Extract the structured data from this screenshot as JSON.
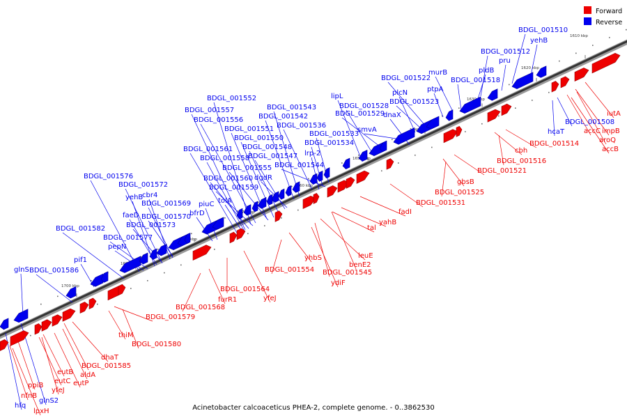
{
  "legend": {
    "forward_label": "Forward",
    "reverse_label": "Reverse",
    "forward_color": "#ee0000",
    "reverse_color": "#0000ee"
  },
  "caption": "Acinetobacter calcoaceticus PHEA-2, complete genome. - 0..3862530",
  "ticks": [
    "1610 kbp",
    "1620 kbp",
    "1630 kbp",
    "1640 kbp",
    "1650 kbp",
    "1660 kbp",
    "1670 kbp",
    "1680 kbp",
    "1690 kbp",
    "1700 kbp"
  ],
  "reverse_labels": [
    "BDGL_001510",
    "yehB",
    "BDGL_001512",
    "pru",
    "pldB",
    "murB",
    "BDGL_001518",
    "ptpA",
    "BDGL_001522",
    "plcN",
    "BDGL_001523",
    "lipL",
    "BDGL_001528",
    "dnaX",
    "BDGL_001529",
    "smvA",
    "BDGL_001552",
    "BDGL_001543",
    "BDGL_001557",
    "BDGL_001542",
    "BDGL_001556",
    "BDGL_001536",
    "BDGL_001551",
    "BDGL_001533",
    "BDGL_001550",
    "BDGL_001534",
    "BDGL_001548",
    "BDGL_001561",
    "BDGL_001547",
    "lrp-2",
    "BDGL_001558",
    "BDGL_001555",
    "BDGL_001544",
    "BDGL_001560",
    "dgdR",
    "BDGL_001559",
    "BDGL_001576",
    "BDGL_001572",
    "cbr4",
    "yehB",
    "BDGL_001569",
    "piuC",
    "tolA",
    "faeD",
    "BDGL_001570",
    "bfrD",
    "BDGL_001573",
    "BDGL_001582",
    "BDGL_001577",
    "pepN",
    "pif1",
    "glnS",
    "BDGL_001586",
    "hcaT",
    "BDGL_001508",
    "hfq",
    "glnS2"
  ],
  "forward_labels": [
    "iutA",
    "accC",
    "impB",
    "aroQ",
    "accB",
    "BDGL_001514",
    "cbh",
    "BDGL_001516",
    "BDGL_001521",
    "gbsB",
    "BDGL_001525",
    "BDGL_001531",
    "fadI",
    "yahB",
    "tal",
    "leuE",
    "benE2",
    "BDGL_001545",
    "ydiF",
    "yhbS",
    "BDGL_001554",
    "BDGL_001564",
    "yfeJ",
    "furR1",
    "BDGL_001568",
    "BDGL_001579",
    "thiM",
    "BDGL_001580",
    "dhaT",
    "BDGL_001585",
    "aldA",
    "eutP",
    "eutB",
    "eutC",
    "yfeJ",
    "ppiB",
    "nfnB",
    "lpxH"
  ]
}
